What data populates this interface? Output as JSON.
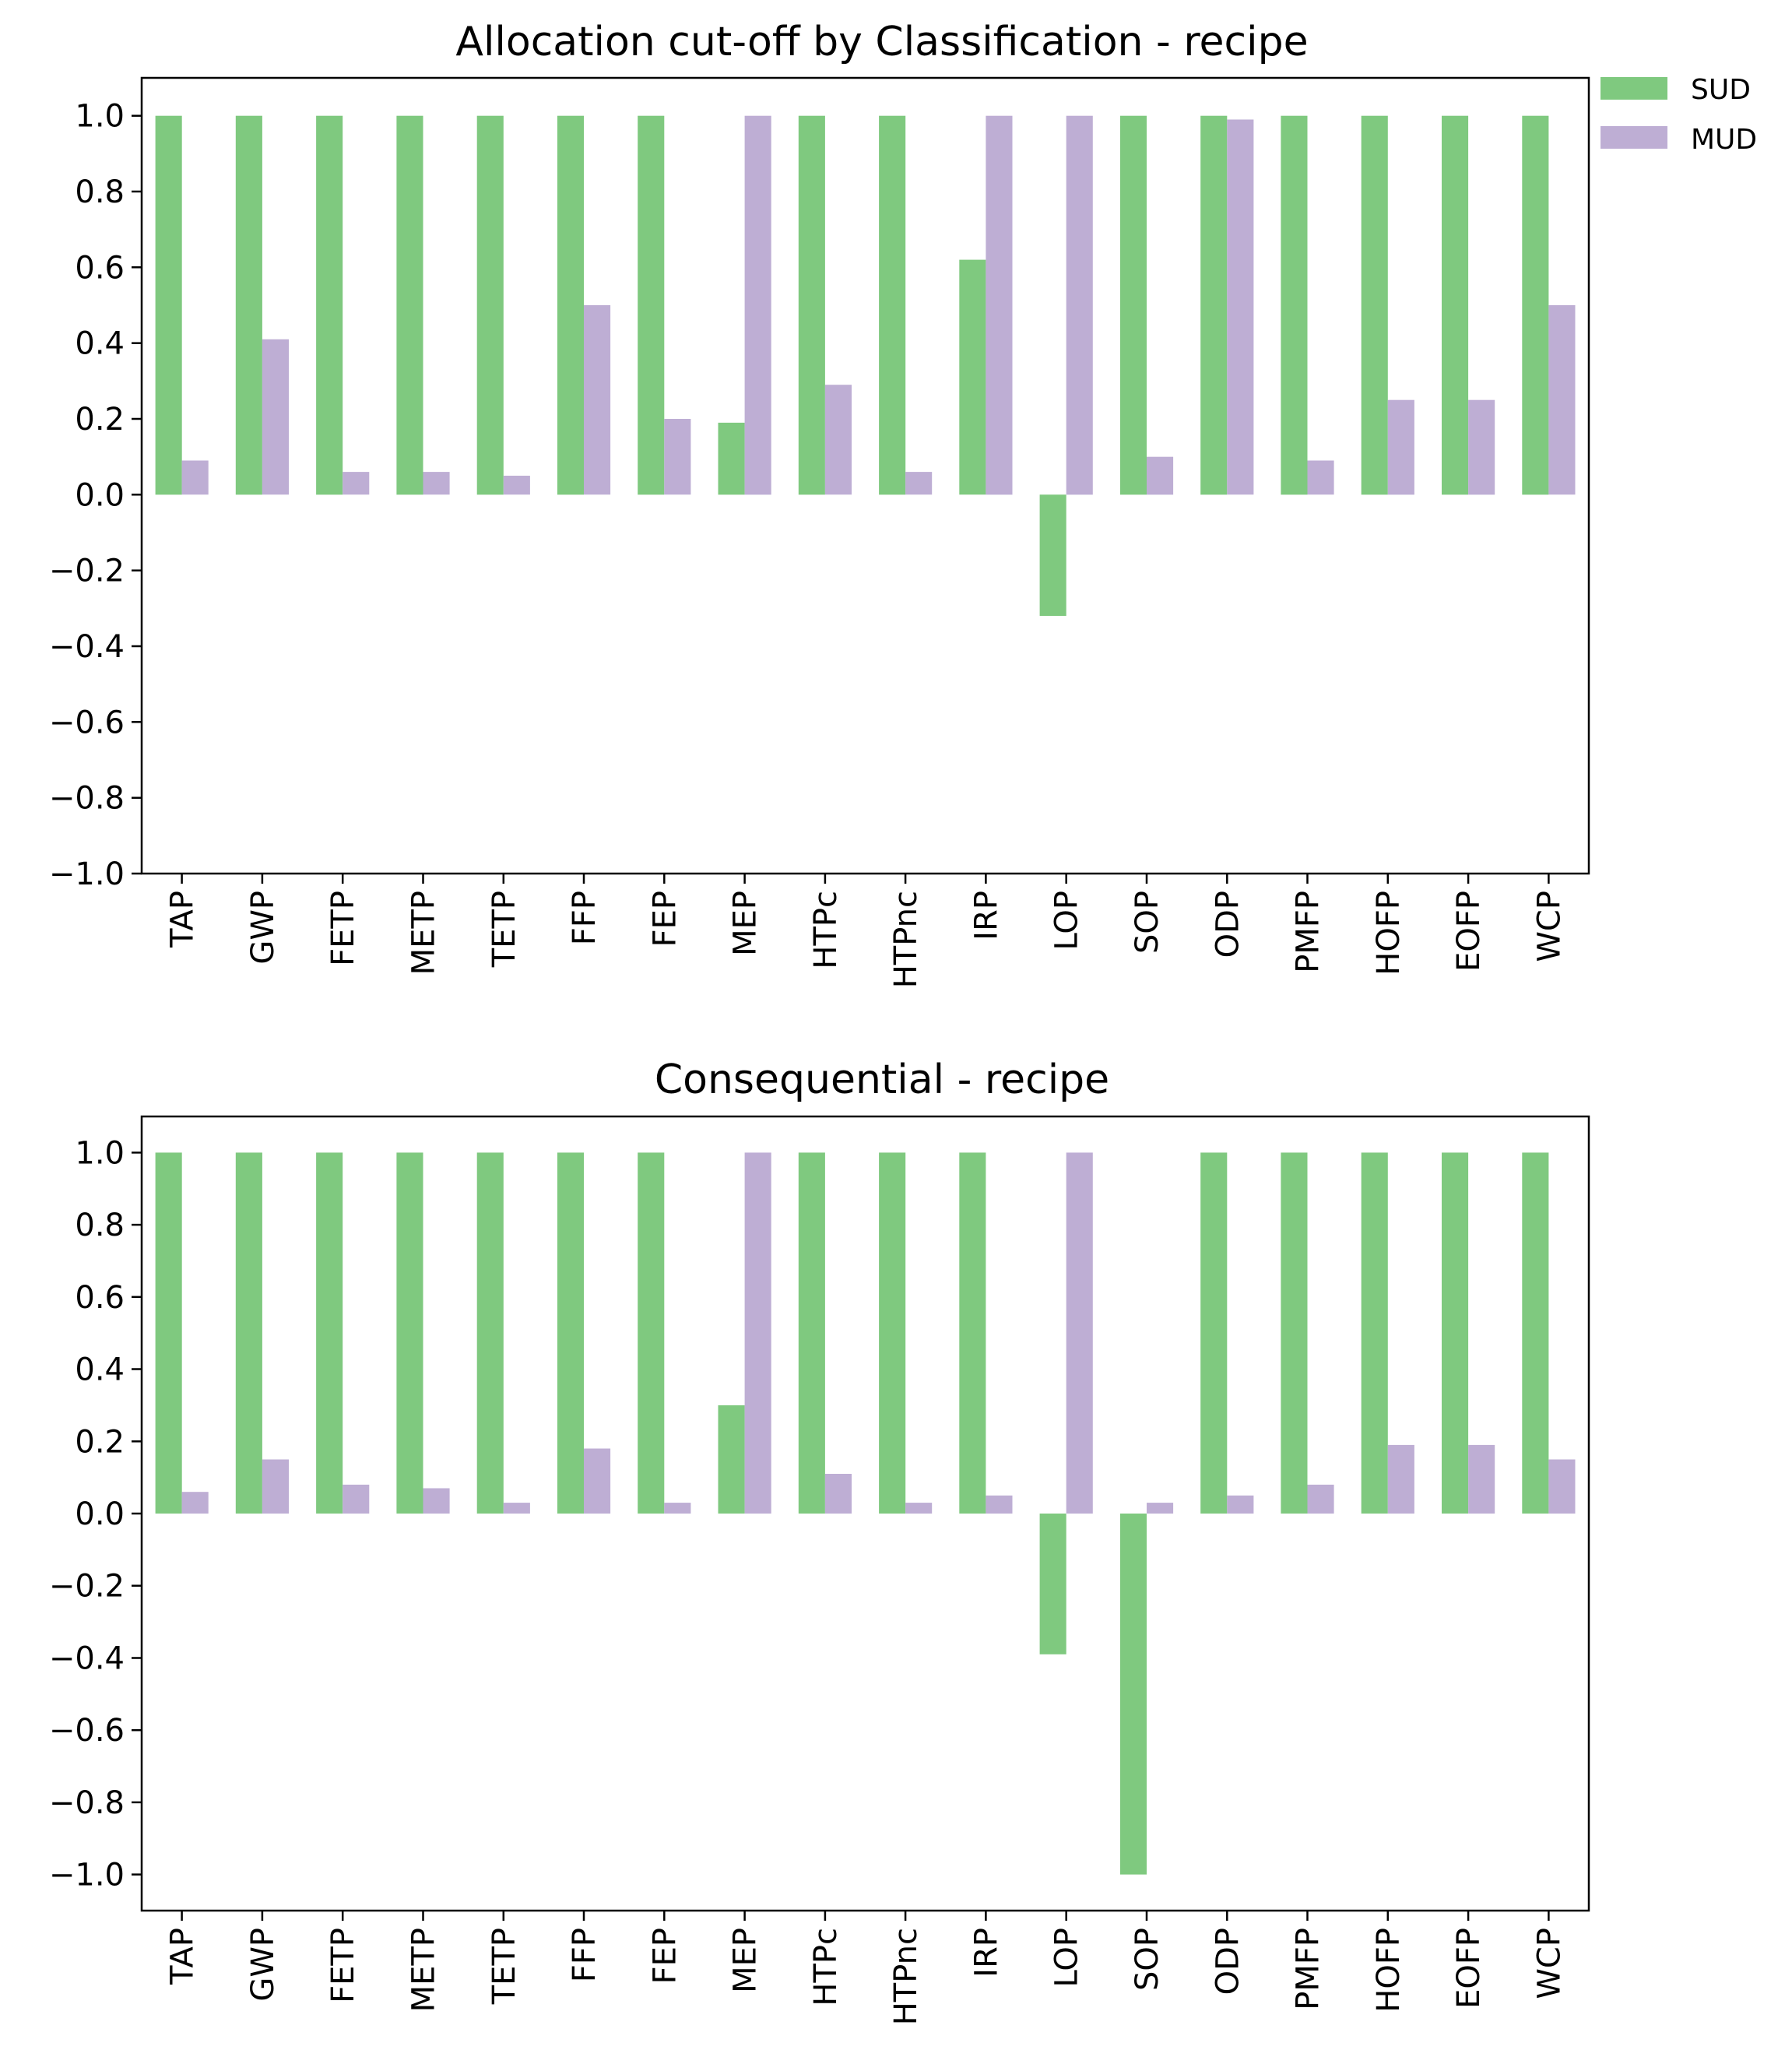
{
  "legend": {
    "items": [
      {
        "label": "SUD",
        "color": "#7fc97f"
      },
      {
        "label": "MUD",
        "color": "#beaed4"
      }
    ]
  },
  "chart_data": [
    {
      "type": "bar",
      "title": "Allocation cut-off by Classification - recipe",
      "xlabel": "",
      "ylabel": "",
      "categories": [
        "TAP",
        "GWP",
        "FETP",
        "METP",
        "TETP",
        "FFP",
        "FEP",
        "MEP",
        "HTPc",
        "HTPnc",
        "IRP",
        "LOP",
        "SOP",
        "ODP",
        "PMFP",
        "HOFP",
        "EOFP",
        "WCP"
      ],
      "series": [
        {
          "name": "SUD",
          "color": "#7fc97f",
          "values": [
            1.0,
            1.0,
            1.0,
            1.0,
            1.0,
            1.0,
            1.0,
            0.19,
            1.0,
            1.0,
            0.62,
            -0.32,
            1.0,
            1.0,
            1.0,
            1.0,
            1.0,
            1.0
          ]
        },
        {
          "name": "MUD",
          "color": "#beaed4",
          "values": [
            0.09,
            0.41,
            0.06,
            0.06,
            0.05,
            0.5,
            0.2,
            1.0,
            0.29,
            0.06,
            1.0,
            1.0,
            0.1,
            0.99,
            0.09,
            0.25,
            0.25,
            0.5
          ]
        }
      ],
      "ylim": [
        -1.0,
        1.1
      ],
      "yticks": [
        -1.0,
        -0.8,
        -0.6,
        -0.4,
        -0.2,
        0.0,
        0.2,
        0.4,
        0.6,
        0.8,
        1.0
      ],
      "ytick_labels": [
        "−1.0",
        "−0.8",
        "−0.6",
        "−0.4",
        "−0.2",
        "0.0",
        "0.2",
        "0.4",
        "0.6",
        "0.8",
        "1.0"
      ],
      "grid": false,
      "legend_position": "outside top-right"
    },
    {
      "type": "bar",
      "title": "Consequential - recipe",
      "xlabel": "",
      "ylabel": "",
      "categories": [
        "TAP",
        "GWP",
        "FETP",
        "METP",
        "TETP",
        "FFP",
        "FEP",
        "MEP",
        "HTPc",
        "HTPnc",
        "IRP",
        "LOP",
        "SOP",
        "ODP",
        "PMFP",
        "HOFP",
        "EOFP",
        "WCP"
      ],
      "series": [
        {
          "name": "SUD",
          "color": "#7fc97f",
          "values": [
            1.0,
            1.0,
            1.0,
            1.0,
            1.0,
            1.0,
            1.0,
            0.3,
            1.0,
            1.0,
            1.0,
            -0.39,
            -1.0,
            1.0,
            1.0,
            1.0,
            1.0,
            1.0
          ]
        },
        {
          "name": "MUD",
          "color": "#beaed4",
          "values": [
            0.06,
            0.15,
            0.08,
            0.07,
            0.03,
            0.18,
            0.03,
            1.0,
            0.11,
            0.03,
            0.05,
            1.0,
            0.03,
            0.05,
            0.08,
            0.19,
            0.19,
            0.15
          ]
        }
      ],
      "ylim": [
        -1.1,
        1.1
      ],
      "yticks": [
        -1.0,
        -0.8,
        -0.6,
        -0.4,
        -0.2,
        0.0,
        0.2,
        0.4,
        0.6,
        0.8,
        1.0
      ],
      "ytick_labels": [
        "−1.0",
        "−0.8",
        "−0.6",
        "−0.4",
        "−0.2",
        "0.0",
        "0.2",
        "0.4",
        "0.6",
        "0.8",
        "1.0"
      ],
      "grid": false
    }
  ]
}
